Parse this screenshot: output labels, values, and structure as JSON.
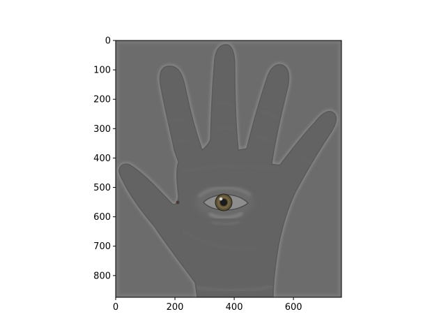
{
  "figure": {
    "background_color": "#ffffff"
  },
  "image_plot": {
    "description_colors": {
      "background_gray": "#6b6b6b",
      "hand_gray": "#626262",
      "edge_highlight": "#8a8a8a",
      "iris": "#6f5a3a",
      "pupil": "#1a1a1a"
    },
    "x_axis": {
      "range": [
        0,
        762
      ],
      "ticks": [
        {
          "value": 0,
          "label": "0"
        },
        {
          "value": 200,
          "label": "200"
        },
        {
          "value": 400,
          "label": "400"
        },
        {
          "value": 600,
          "label": "600"
        }
      ]
    },
    "y_axis": {
      "range": [
        0,
        874
      ],
      "inverted": true,
      "ticks": [
        {
          "value": 0,
          "label": "0"
        },
        {
          "value": 100,
          "label": "100"
        },
        {
          "value": 200,
          "label": "200"
        },
        {
          "value": 300,
          "label": "300"
        },
        {
          "value": 400,
          "label": "400"
        },
        {
          "value": 500,
          "label": "500"
        },
        {
          "value": 600,
          "label": "600"
        },
        {
          "value": 700,
          "label": "700"
        },
        {
          "value": 800,
          "label": "800"
        }
      ]
    }
  }
}
